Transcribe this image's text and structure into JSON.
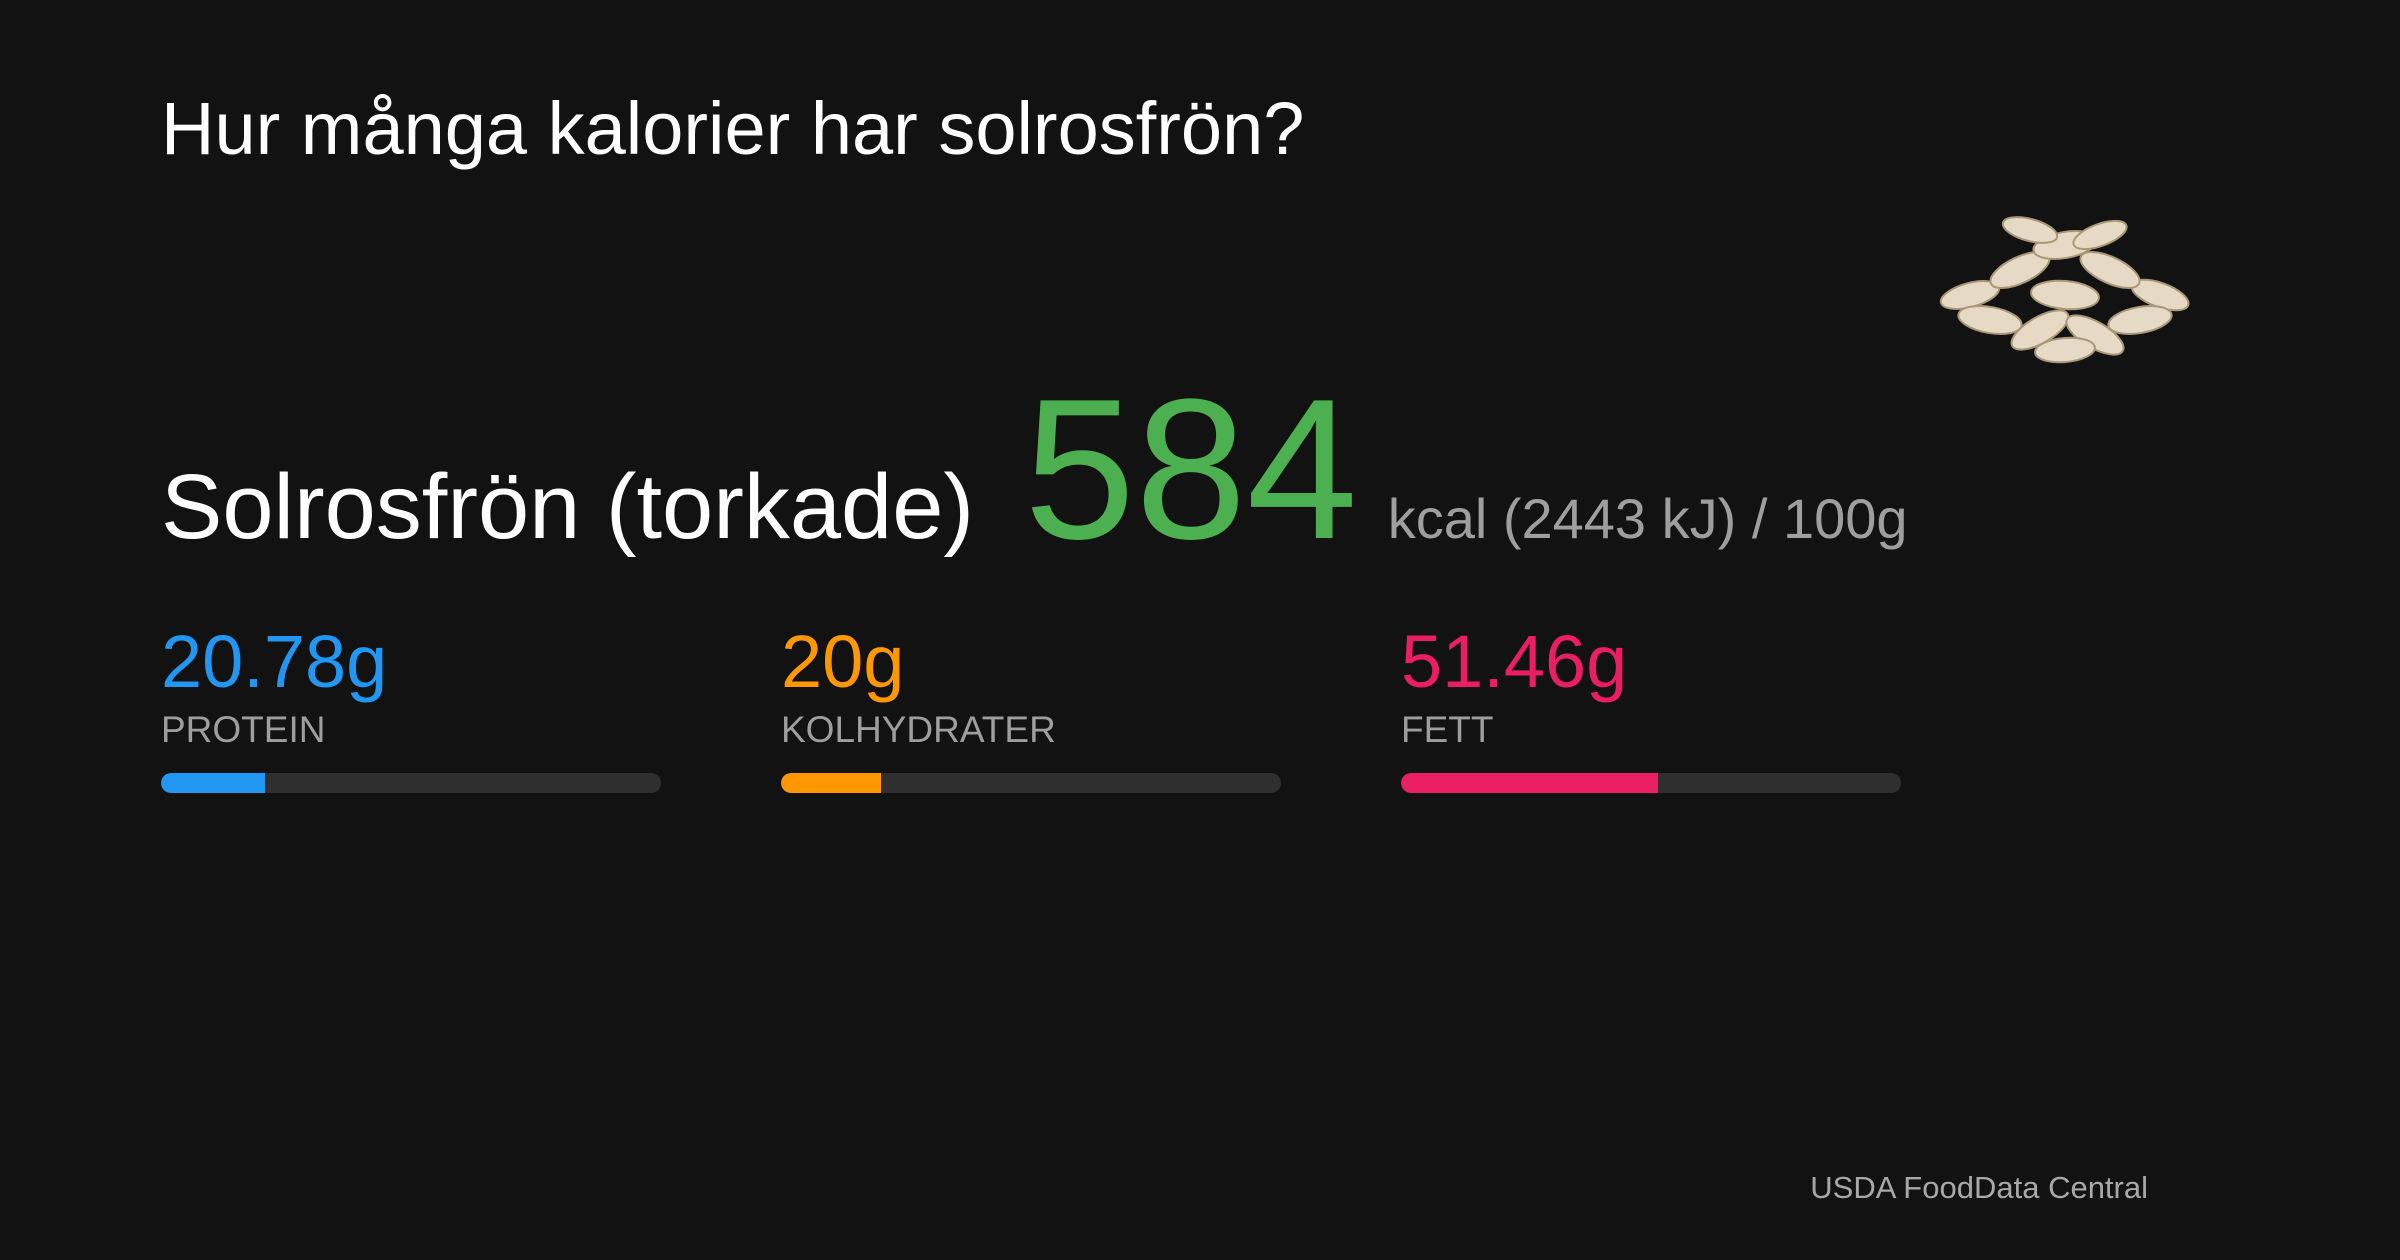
{
  "header": {
    "title": "Hur många kalorier har solrosfrön?"
  },
  "food": {
    "name": "Solrosfrön (torkade)",
    "calories": 584,
    "unit": "kcal (2443 kJ) / 100g"
  },
  "macros": {
    "bar_range": [
      0,
      100
    ],
    "items": [
      {
        "amount": 20.78,
        "amount_label": "20.78g",
        "name": "PROTEIN",
        "color": "#2196f3"
      },
      {
        "amount": 20,
        "amount_label": "20g",
        "name": "KOLHYDRATER",
        "color": "#ff9800"
      },
      {
        "amount": 51.46,
        "amount_label": "51.46g",
        "name": "FETT",
        "color": "#e91e63"
      }
    ]
  },
  "footer": {
    "source": "USDA FoodData Central"
  }
}
